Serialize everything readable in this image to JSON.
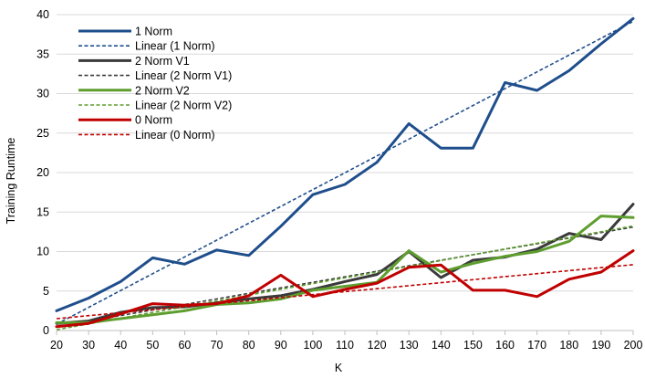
{
  "chart_data": {
    "type": "line",
    "title": "",
    "xlabel": "K",
    "ylabel": "Training Runtime",
    "xlim": [
      20,
      200
    ],
    "ylim": [
      0,
      40
    ],
    "x_ticks": [
      20,
      30,
      40,
      50,
      60,
      70,
      80,
      90,
      100,
      110,
      120,
      130,
      140,
      150,
      160,
      170,
      180,
      190,
      200
    ],
    "y_ticks": [
      0,
      5,
      10,
      15,
      20,
      25,
      30,
      35,
      40
    ],
    "grid": "horizontal",
    "legend_position": "top-left",
    "x": [
      20,
      30,
      40,
      50,
      60,
      70,
      80,
      90,
      100,
      110,
      120,
      130,
      140,
      150,
      160,
      170,
      180,
      190,
      200
    ],
    "series": [
      {
        "name": "1 Norm",
        "style": "solid",
        "color": "#1F4E8C",
        "values": [
          2.5,
          4.1,
          6.2,
          9.2,
          8.4,
          10.2,
          9.5,
          13.2,
          17.2,
          18.5,
          21.3,
          26.2,
          23.1,
          23.1,
          31.4,
          30.4,
          32.9,
          36.3,
          39.5
        ]
      },
      {
        "name": "Linear (1 Norm)",
        "style": "dashed",
        "color": "#1F4E8C",
        "values": [
          0.8,
          2.93,
          5.06,
          7.19,
          9.32,
          11.45,
          13.58,
          15.71,
          17.84,
          19.97,
          22.1,
          24.23,
          26.36,
          28.49,
          30.62,
          32.75,
          34.88,
          37.01,
          39.14
        ]
      },
      {
        "name": "2 Norm V1",
        "style": "solid",
        "color": "#3A3A3A",
        "values": [
          0.9,
          1.2,
          2.3,
          2.9,
          3.0,
          3.5,
          4.0,
          4.4,
          5.2,
          6.2,
          7.1,
          10.0,
          6.7,
          8.9,
          9.3,
          10.3,
          12.3,
          11.5,
          16.0
        ]
      },
      {
        "name": "Linear (2 Norm V1)",
        "style": "dashed",
        "color": "#3A3A3A",
        "values": [
          0.5,
          1.2,
          1.9,
          2.6,
          3.3,
          4.0,
          4.7,
          5.4,
          6.1,
          6.8,
          7.5,
          8.2,
          8.9,
          9.6,
          10.3,
          11.0,
          11.7,
          12.4,
          13.1
        ]
      },
      {
        "name": "2 Norm V2",
        "style": "solid",
        "color": "#5E9E2E",
        "values": [
          1.0,
          1.0,
          1.5,
          2.0,
          2.5,
          3.3,
          3.5,
          4.0,
          5.1,
          5.6,
          6.1,
          10.1,
          7.4,
          8.5,
          9.4,
          10.0,
          11.3,
          14.5,
          14.3
        ]
      },
      {
        "name": "Linear (2 Norm V2)",
        "style": "dashed",
        "color": "#5E9E2E",
        "values": [
          0.1,
          0.83,
          1.56,
          2.29,
          3.02,
          3.75,
          4.48,
          5.21,
          5.94,
          6.67,
          7.4,
          8.13,
          8.86,
          9.59,
          10.32,
          11.05,
          11.78,
          12.51,
          13.24
        ]
      },
      {
        "name": "0 Norm",
        "style": "solid",
        "color": "#C00000",
        "values": [
          0.5,
          0.9,
          2.1,
          3.4,
          3.2,
          3.4,
          4.4,
          7.0,
          4.3,
          5.2,
          6.0,
          8.0,
          8.3,
          5.1,
          5.1,
          4.3,
          6.5,
          7.4,
          10.1
        ]
      },
      {
        "name": "Linear (0 Norm)",
        "style": "dashed",
        "color": "#C00000",
        "values": [
          1.5,
          1.88,
          2.26,
          2.64,
          3.02,
          3.4,
          3.78,
          4.16,
          4.54,
          4.92,
          5.3,
          5.68,
          6.06,
          6.44,
          6.82,
          7.2,
          7.58,
          7.96,
          8.34
        ]
      }
    ]
  }
}
